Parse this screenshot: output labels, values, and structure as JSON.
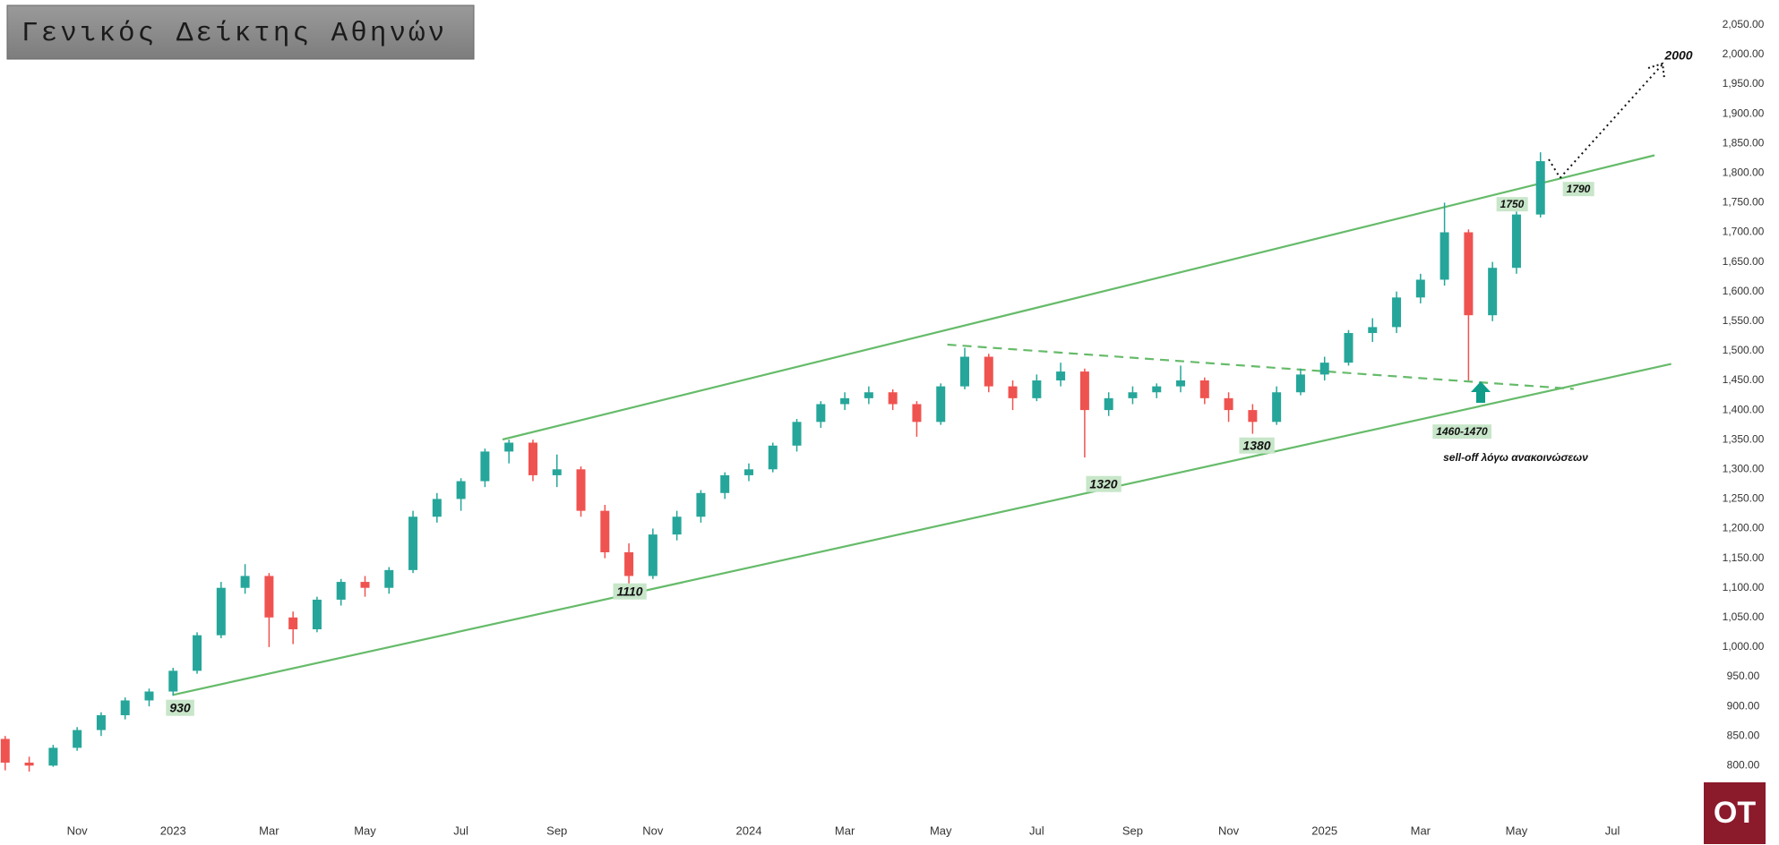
{
  "chart_data": {
    "type": "candlestick",
    "title": "Γενικός Δείκτης Αθηνών",
    "logo": "OT",
    "up_color": "#26a69a",
    "down_color": "#ef5350",
    "categories": [
      null,
      null,
      null,
      "Nov",
      null,
      null,
      null,
      "2023",
      null,
      null,
      null,
      "Mar",
      null,
      null,
      null,
      "May",
      null,
      null,
      null,
      "Jul",
      null,
      null,
      null,
      "Sep",
      null,
      null,
      null,
      "Nov",
      null,
      null,
      null,
      "2024",
      null,
      null,
      null,
      "Mar",
      null,
      null,
      null,
      "May",
      null,
      null,
      null,
      "Jul",
      null,
      null,
      null,
      "Sep",
      null,
      null,
      null,
      "Nov",
      null,
      null,
      null,
      "2025",
      null,
      null,
      null,
      "Mar",
      null,
      null,
      null,
      "May",
      null,
      null,
      null,
      "Jul"
    ],
    "open": [
      845,
      805,
      800,
      830,
      860,
      885,
      910,
      925,
      960,
      1020,
      1100,
      1120,
      1050,
      1030,
      1080,
      1110,
      1100,
      1130,
      1220,
      1250,
      1280,
      1330,
      1345,
      1290,
      1300,
      1230,
      1160,
      1120,
      1190,
      1220,
      1260,
      1290,
      1300,
      1340,
      1380,
      1410,
      1420,
      1430,
      1410,
      1380,
      1440,
      1490,
      1440,
      1420,
      1450,
      1465,
      1400,
      1420,
      1430,
      1440,
      1450,
      1420,
      1400,
      1380,
      1430,
      1460,
      1480,
      1530,
      1540,
      1590,
      1620,
      1700,
      1560,
      1640,
      1730,
      null,
      null,
      null
    ],
    "high": [
      850,
      815,
      835,
      865,
      890,
      915,
      930,
      965,
      1025,
      1110,
      1140,
      1125,
      1060,
      1085,
      1115,
      1120,
      1135,
      1230,
      1260,
      1285,
      1335,
      1350,
      1350,
      1325,
      1305,
      1240,
      1175,
      1200,
      1230,
      1265,
      1295,
      1310,
      1345,
      1385,
      1415,
      1430,
      1440,
      1435,
      1415,
      1445,
      1505,
      1495,
      1450,
      1460,
      1480,
      1470,
      1430,
      1440,
      1445,
      1475,
      1455,
      1430,
      1410,
      1440,
      1470,
      1490,
      1535,
      1555,
      1600,
      1630,
      1750,
      1705,
      1650,
      1735,
      1835,
      null,
      null,
      null
    ],
    "low": [
      792,
      790,
      798,
      825,
      850,
      878,
      900,
      918,
      955,
      1015,
      1090,
      1000,
      1005,
      1025,
      1070,
      1085,
      1090,
      1125,
      1210,
      1230,
      1270,
      1310,
      1280,
      1270,
      1220,
      1150,
      1100,
      1115,
      1180,
      1210,
      1250,
      1280,
      1295,
      1330,
      1370,
      1400,
      1410,
      1400,
      1355,
      1375,
      1435,
      1430,
      1400,
      1415,
      1440,
      1320,
      1390,
      1410,
      1420,
      1430,
      1410,
      1380,
      1360,
      1375,
      1425,
      1450,
      1475,
      1515,
      1530,
      1580,
      1610,
      1450,
      1550,
      1630,
      1725,
      null,
      null,
      null
    ],
    "close": [
      805,
      800,
      830,
      860,
      885,
      910,
      925,
      960,
      1020,
      1100,
      1120,
      1050,
      1030,
      1080,
      1110,
      1100,
      1130,
      1220,
      1250,
      1280,
      1330,
      1345,
      1290,
      1300,
      1230,
      1160,
      1120,
      1190,
      1220,
      1260,
      1290,
      1300,
      1340,
      1380,
      1410,
      1420,
      1430,
      1410,
      1380,
      1440,
      1490,
      1440,
      1420,
      1450,
      1465,
      1400,
      1420,
      1430,
      1440,
      1450,
      1420,
      1400,
      1380,
      1430,
      1460,
      1480,
      1530,
      1540,
      1590,
      1620,
      1700,
      1560,
      1640,
      1730,
      1820,
      null,
      null,
      null
    ],
    "ylim": [
      666,
      2092
    ],
    "yticks": [
      {
        "value": 800,
        "label": "800.00"
      },
      {
        "value": 850,
        "label": "850.00"
      },
      {
        "value": 900,
        "label": "900.00"
      },
      {
        "value": 950,
        "label": "950.00"
      },
      {
        "value": 1000,
        "label": "1,000.00"
      },
      {
        "value": 1050,
        "label": "1,050.00"
      },
      {
        "value": 1100,
        "label": "1,100.00"
      },
      {
        "value": 1150,
        "label": "1,150.00"
      },
      {
        "value": 1200,
        "label": "1,200.00"
      },
      {
        "value": 1250,
        "label": "1,250.00"
      },
      {
        "value": 1300,
        "label": "1,300.00"
      },
      {
        "value": 1350,
        "label": "1,350.00"
      },
      {
        "value": 1400,
        "label": "1,400.00"
      },
      {
        "value": 1450,
        "label": "1,450.00"
      },
      {
        "value": 1500,
        "label": "1,500.00"
      },
      {
        "value": 1550,
        "label": "1,550.00"
      },
      {
        "value": 1600,
        "label": "1,600.00"
      },
      {
        "value": 1650,
        "label": "1,650.00"
      },
      {
        "value": 1700,
        "label": "1,700.00"
      },
      {
        "value": 1750,
        "label": "1,750.00"
      },
      {
        "value": 1800,
        "label": "1,800.00"
      },
      {
        "value": 1850,
        "label": "1,850.00"
      },
      {
        "value": 1900,
        "label": "1,900.00"
      },
      {
        "value": 1950,
        "label": "1,950.00"
      },
      {
        "value": 2000,
        "label": "2,000.00"
      },
      {
        "value": 2050,
        "label": "2,050.00"
      }
    ],
    "annotations": [
      "2000",
      "1790",
      "1750",
      "1460-1470",
      "sell-off λόγω ανακοινώσεων",
      "1380",
      "1320",
      "1110",
      "930"
    ]
  }
}
